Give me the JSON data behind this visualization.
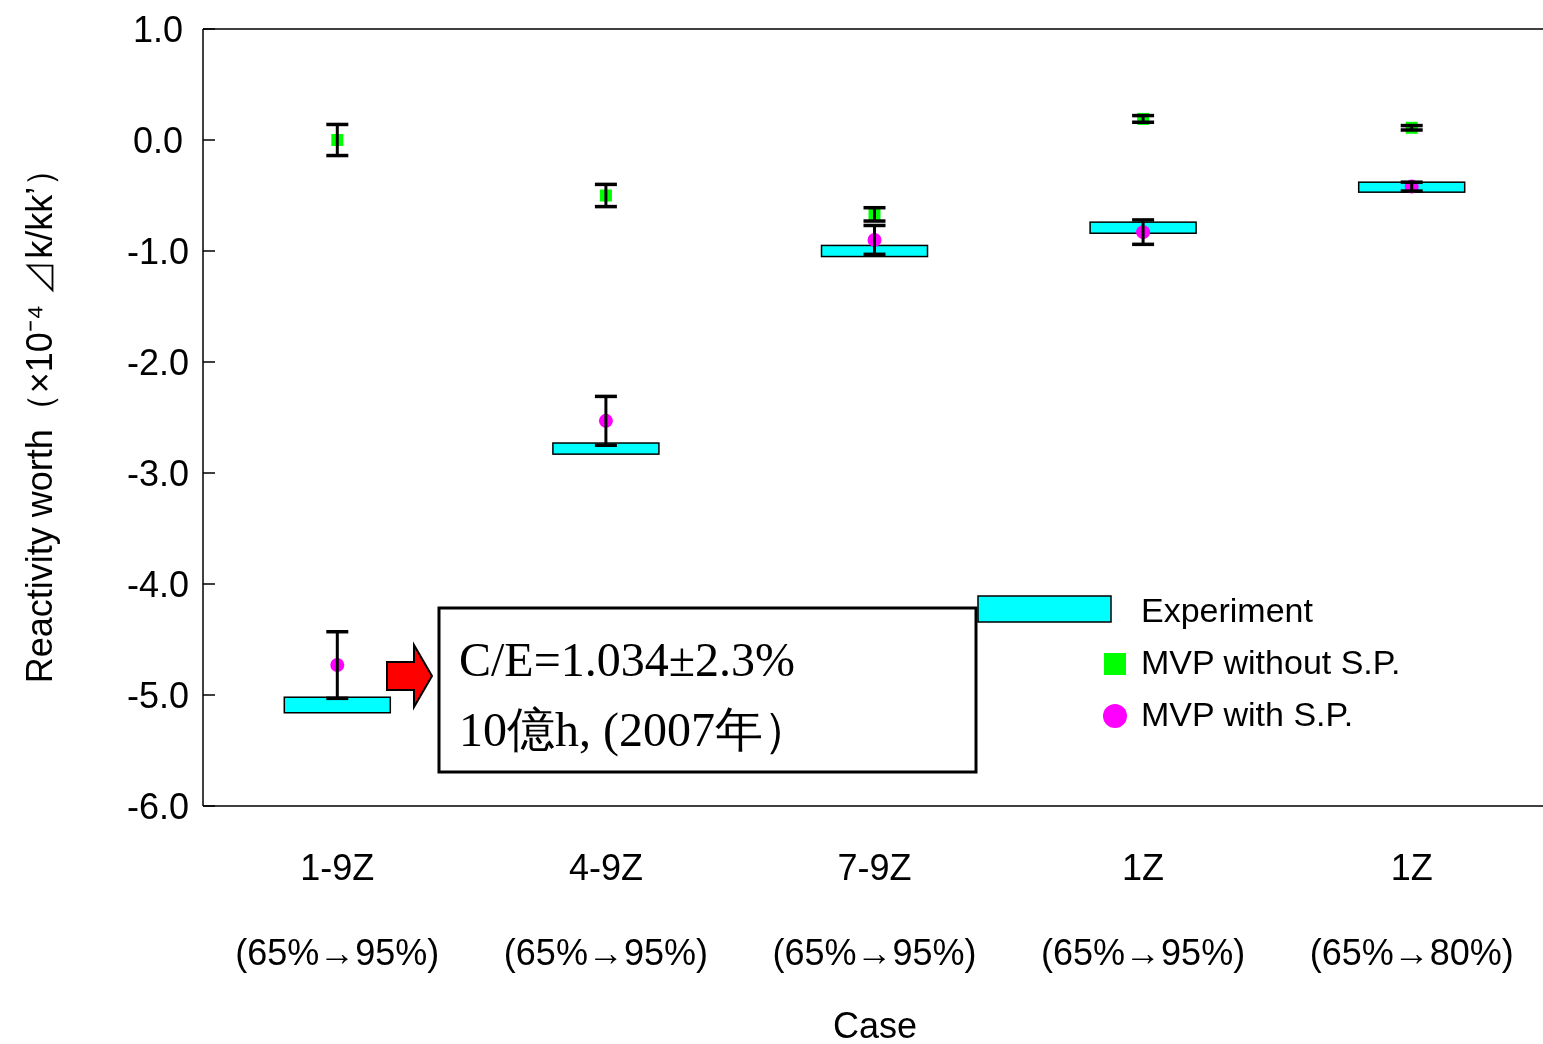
{
  "chart_data": {
    "type": "bar",
    "xlabel": "Case",
    "ylabel": "Reactivity worth（×10⁻⁴ ⊿k/kk’）",
    "categories": [
      "1-9Z\n(65%→95%)",
      "4-9Z\n(65%→95%)",
      "7-9Z\n(65%→95%)",
      "1Z\n(65%→95%)",
      "1Z\n(65%→80%)"
    ],
    "series": [
      {
        "name": "Experiment",
        "type": "bar",
        "color": "#00ffff",
        "base": [
          -5.16,
          -2.83,
          -1.05,
          -0.84,
          -0.47
        ],
        "values": [
          0.14,
          0.1,
          0.1,
          0.1,
          0.09
        ]
      },
      {
        "name": "MVP without S.P.",
        "type": "scatter",
        "marker": "square",
        "color": "#00ff00",
        "x": [
          "1-9Z\n(65%→95%)",
          "4-9Z\n(65%→95%)",
          "7-9Z\n(65%→95%)",
          "1Z\n(65%→95%)",
          "1Z\n(65%→80%)"
        ],
        "values": [
          0.0,
          -0.5,
          -0.67,
          0.19,
          0.11
        ],
        "errors": [
          0.14,
          0.1,
          0.06,
          0.03,
          0.02
        ]
      },
      {
        "name": "MVP with S.P.",
        "type": "scatter",
        "marker": "circle",
        "color": "#ff00ff",
        "x": [
          "1-9Z\n(65%→95%)",
          "4-9Z\n(65%→95%)",
          "7-9Z\n(65%→95%)",
          "1Z\n(65%→95%)",
          "1Z\n(65%→80%)"
        ],
        "values": [
          -4.73,
          -2.53,
          -0.9,
          -0.83,
          -0.42
        ],
        "errors": [
          0.3,
          0.22,
          0.13,
          0.11,
          0.04
        ]
      }
    ],
    "ylim": [
      -6,
      1
    ],
    "yticks": [
      {
        "value": -6,
        "label": "-6.0"
      },
      {
        "value": -5,
        "label": "-5.0"
      },
      {
        "value": -4,
        "label": "-4.0"
      },
      {
        "value": -3,
        "label": "-3.0"
      },
      {
        "value": -2,
        "label": "-2.0"
      },
      {
        "value": -1,
        "label": "-1.0"
      },
      {
        "value": 0,
        "label": "0.0"
      },
      {
        "value": 1,
        "label": "1.0"
      }
    ],
    "grid": false,
    "legend": "bottom right",
    "annotations": [
      "C/E=1.034±2.3%\n10億h, (2007年）"
    ]
  }
}
